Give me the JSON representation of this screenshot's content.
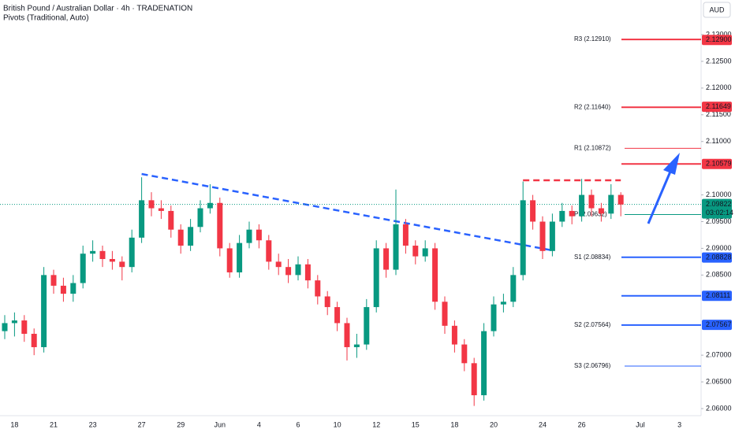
{
  "chart_data": {
    "type": "candlestick",
    "title": "British Pound / Australian Dollar · 4h · TRADENATION",
    "subtitle": "Pivots (Traditional, Auto)",
    "currency": "AUD",
    "up_color": "#089981",
    "down_color": "#f23645",
    "categories": [
      null,
      "18",
      null,
      null,
      null,
      "21",
      null,
      null,
      null,
      "23",
      null,
      null,
      null,
      null,
      "27",
      null,
      null,
      null,
      "29",
      null,
      null,
      null,
      "Jun",
      null,
      null,
      null,
      "4",
      null,
      null,
      null,
      "6",
      null,
      null,
      null,
      "10",
      null,
      null,
      null,
      "12",
      null,
      null,
      null,
      "15",
      null,
      null,
      null,
      "18",
      null,
      null,
      null,
      "20",
      null,
      null,
      null,
      null,
      "24",
      null,
      null,
      null,
      "26",
      null,
      null,
      null,
      null,
      null,
      "Jul",
      null,
      null,
      null,
      "3"
    ],
    "open": [
      2.0745,
      2.076,
      2.0765,
      2.074,
      2.0715,
      2.085,
      2.083,
      2.0815,
      2.0835,
      2.089,
      2.0895,
      2.088,
      2.0875,
      2.0865,
      2.092,
      2.099,
      2.0975,
      2.097,
      2.0935,
      2.0905,
      2.094,
      2.0975,
      2.0985,
      2.09,
      2.0855,
      2.091,
      2.0935,
      2.0915,
      2.0875,
      2.0865,
      2.085,
      2.087,
      2.084,
      2.081,
      2.079,
      2.076,
      2.0715,
      2.072,
      2.079,
      2.09,
      2.086,
      2.0945,
      2.0905,
      2.0885,
      2.09,
      2.08,
      2.0755,
      2.072,
      2.0685,
      2.0625,
      2.0745,
      2.0795,
      2.08,
      2.085,
      2.099,
      2.095,
      2.0895,
      2.095,
      2.097,
      2.096,
      2.1,
      2.0975,
      2.0965,
      2.1,
      null,
      null,
      null,
      null,
      null,
      null
    ],
    "high": [
      2.0775,
      2.078,
      2.0775,
      2.075,
      2.0865,
      2.086,
      2.0845,
      2.085,
      2.0905,
      2.0915,
      2.0905,
      2.0895,
      2.0885,
      2.0935,
      2.1033,
      2.1005,
      2.099,
      2.098,
      2.0945,
      2.0955,
      2.099,
      2.102,
      2.0995,
      2.091,
      2.0925,
      2.095,
      2.0945,
      2.0925,
      2.089,
      2.088,
      2.0885,
      2.088,
      2.085,
      2.082,
      2.08,
      2.077,
      2.074,
      2.0805,
      2.0915,
      2.091,
      2.101,
      2.0955,
      2.0915,
      2.0915,
      2.091,
      2.081,
      2.0765,
      2.073,
      2.0695,
      2.076,
      2.081,
      2.0815,
      2.0865,
      2.1025,
      2.1,
      2.096,
      2.0965,
      2.0985,
      2.098,
      2.103,
      2.101,
      2.0985,
      2.102,
      2.1005,
      null,
      null,
      null,
      null,
      null,
      null
    ],
    "low": [
      2.073,
      2.0735,
      2.0725,
      2.07,
      2.0705,
      2.0815,
      2.08,
      2.08,
      2.0825,
      2.0875,
      2.0865,
      2.086,
      2.084,
      2.0855,
      2.091,
      2.096,
      2.0955,
      2.092,
      2.089,
      2.0895,
      2.093,
      2.0965,
      2.0885,
      2.0845,
      2.0845,
      2.09,
      2.09,
      2.086,
      2.085,
      2.0835,
      2.084,
      2.0825,
      2.0795,
      2.0775,
      2.0745,
      2.069,
      2.0695,
      2.071,
      2.078,
      2.0845,
      2.085,
      2.089,
      2.087,
      2.0875,
      2.0785,
      2.074,
      2.0705,
      2.067,
      2.0605,
      2.0615,
      2.0735,
      2.078,
      2.079,
      2.084,
      2.0935,
      2.088,
      2.0885,
      2.094,
      2.0945,
      2.095,
      2.096,
      2.095,
      2.0955,
      2.096,
      null,
      null,
      null,
      null,
      null,
      null
    ],
    "close": [
      2.076,
      2.0765,
      2.074,
      2.0715,
      2.085,
      2.083,
      2.0815,
      2.0835,
      2.089,
      2.0895,
      2.088,
      2.0875,
      2.0865,
      2.092,
      2.099,
      2.0975,
      2.097,
      2.0935,
      2.0905,
      2.094,
      2.0975,
      2.0985,
      2.09,
      2.0855,
      2.091,
      2.0935,
      2.0915,
      2.0875,
      2.0865,
      2.085,
      2.087,
      2.084,
      2.081,
      2.079,
      2.076,
      2.0715,
      2.072,
      2.079,
      2.09,
      2.086,
      2.0945,
      2.0905,
      2.0885,
      2.09,
      2.08,
      2.0755,
      2.072,
      2.0685,
      2.0625,
      2.0745,
      2.0795,
      2.08,
      2.085,
      2.099,
      2.095,
      2.0895,
      2.095,
      2.097,
      2.096,
      2.1,
      2.0975,
      2.0965,
      2.1,
      2.0982,
      null,
      null,
      null,
      null,
      null,
      null
    ],
    "ylim": [
      2.06,
      2.13
    ],
    "yticks": [
      {
        "value": 2.13,
        "label": "2.13000"
      },
      {
        "value": 2.125,
        "label": "2.12500"
      },
      {
        "value": 2.12,
        "label": "2.12000"
      },
      {
        "value": 2.115,
        "label": "2.11500"
      },
      {
        "value": 2.11,
        "label": "2.11000"
      },
      {
        "value": 2.1,
        "label": "2.10000"
      },
      {
        "value": 2.095,
        "label": "2.09500"
      },
      {
        "value": 2.09,
        "label": "2.09000"
      },
      {
        "value": 2.085,
        "label": "2.08500"
      },
      {
        "value": 2.07,
        "label": "2.07000"
      },
      {
        "value": 2.065,
        "label": "2.06500"
      },
      {
        "value": 2.06,
        "label": "2.06000"
      }
    ],
    "levels": [
      {
        "label": "R3 (2.12910)",
        "value": 2.1291,
        "color": "#f23645",
        "tag": {
          "value": 2.129,
          "label": "2.12900"
        }
      },
      {
        "label": "R2 (2.11640)",
        "value": 2.1164,
        "color": "#f23645",
        "tag": {
          "value": 2.11649,
          "label": "2.11649"
        }
      },
      {
        "label": "R1 (2.10872)",
        "value": 2.10872,
        "color": "#f23645"
      },
      {
        "value": 2.10579,
        "color": "#f23645",
        "tag": {
          "value": 2.10579,
          "label": "2.10579"
        }
      },
      {
        "label": "P (2.09632)",
        "value": 2.09632,
        "color": "#089981"
      },
      {
        "label": "S1 (2.08834)",
        "value": 2.08834,
        "color": "#2962ff",
        "tag": {
          "value": 2.08828,
          "label": "2.08828"
        }
      },
      {
        "value": 2.08111,
        "color": "#2962ff",
        "tag": {
          "value": 2.08111,
          "label": "2.08111"
        }
      },
      {
        "label": "S2 (2.07564)",
        "value": 2.07564,
        "color": "#2962ff",
        "tag": {
          "value": 2.07567,
          "label": "2.07567"
        }
      },
      {
        "label": "S3 (2.06796)",
        "value": 2.06796,
        "color": "#2962ff"
      }
    ],
    "trendlines": [
      {
        "color": "#2962ff",
        "x": [
          14,
          56
        ],
        "y": [
          2.10392,
          2.08962
        ]
      },
      {
        "color": "#f23645",
        "x": [
          53,
          63
        ],
        "y": [
          2.10274,
          2.10274
        ]
      }
    ],
    "last_price": {
      "value": 2.09822,
      "label": "2.09822",
      "countdown": "03:02:14",
      "color": "#089981"
    }
  }
}
